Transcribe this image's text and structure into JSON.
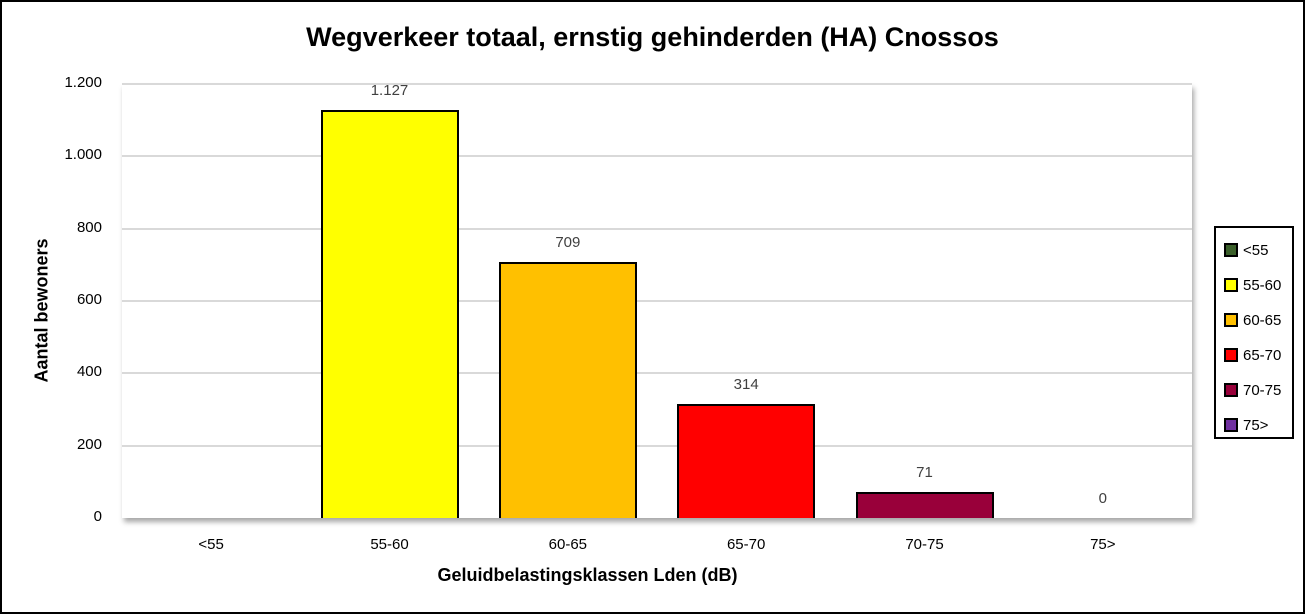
{
  "chart_data": {
    "type": "bar",
    "title": "Wegverkeer totaal, ernstig gehinderden (HA) Cnossos",
    "xlabel": "Geluidbelastingsklassen Lden (dB)",
    "ylabel": "Aantal bewoners",
    "categories": [
      "<55",
      "55-60",
      "60-65",
      "65-70",
      "70-75",
      "75>"
    ],
    "values": [
      null,
      1127,
      709,
      314,
      71,
      0
    ],
    "value_labels": [
      "",
      "1.127",
      "709",
      "314",
      "71",
      "0"
    ],
    "colors": [
      "#3a5f2a",
      "#ffff00",
      "#ffc000",
      "#ff0000",
      "#99003a",
      "#7030a0"
    ],
    "ylim": [
      0,
      1200
    ],
    "yticks": [
      "0",
      "200",
      "400",
      "600",
      "800",
      "1.000",
      "1.200"
    ],
    "grid": true,
    "legend_position": "right",
    "legend": [
      "<55",
      "55-60",
      "60-65",
      "65-70",
      "70-75",
      "75>"
    ]
  }
}
